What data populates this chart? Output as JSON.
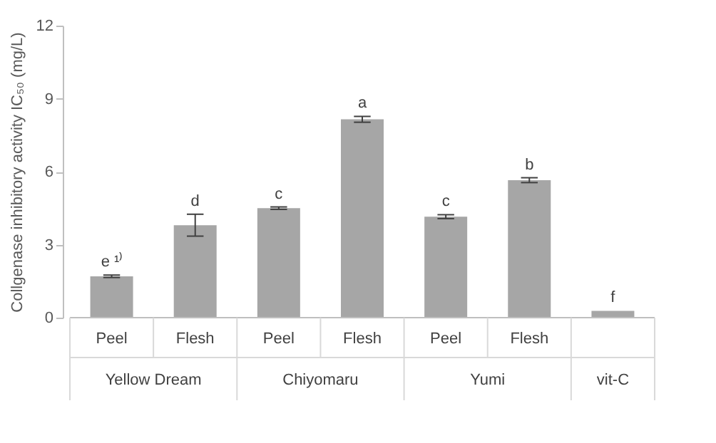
{
  "chart_data": {
    "type": "bar",
    "ylabel": "Collgenase inhibitory activity IC₅₀ (mg/L)",
    "categories": [
      "Peel",
      "Flesh",
      "Peel",
      "Flesh",
      "Peel",
      "Flesh",
      null
    ],
    "values": [
      1.7,
      3.8,
      4.5,
      8.15,
      4.15,
      5.65,
      0.28
    ],
    "errors": [
      0.05,
      0.45,
      0.05,
      0.12,
      0.08,
      0.1,
      null
    ],
    "color": "#a6a6a6",
    "value_labels": [
      "e ¹⁾",
      "d",
      "c",
      "a",
      "c",
      "b",
      "f"
    ],
    "annotations": [
      "Yellow Dream",
      "Chiyomaru",
      "Yumi",
      "vit-C"
    ],
    "ylim": [
      0,
      12
    ],
    "yticks": [
      0,
      3,
      6,
      9,
      12
    ],
    "grid": false
  }
}
